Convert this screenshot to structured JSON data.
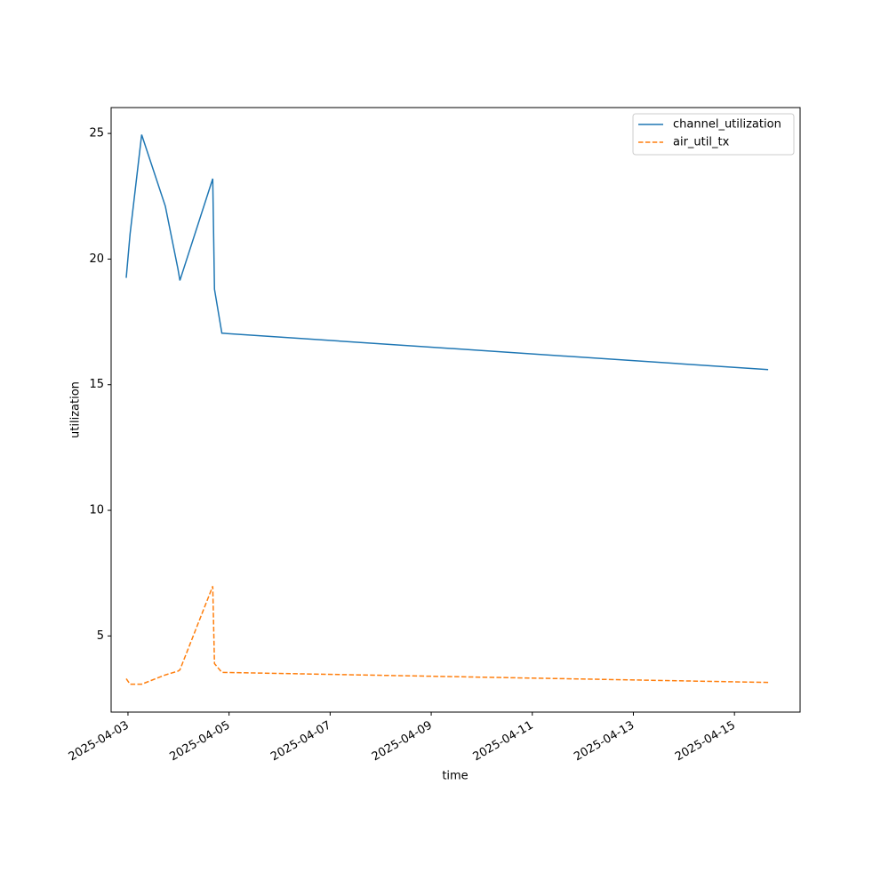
{
  "chart_data": {
    "type": "line",
    "x_label": "time",
    "y_label": "utilization",
    "x": [
      "2025-04-02T23:10",
      "2025-04-03T01:00",
      "2025-04-03T06:30",
      "2025-04-03T17:45",
      "2025-04-03T23:45",
      "2025-04-04T00:40",
      "2025-04-04T16:15",
      "2025-04-04T17:05",
      "2025-04-04T20:35",
      "2025-04-15T16:00"
    ],
    "series": [
      {
        "name": "channel_utilization",
        "color": "#1f77b4",
        "dash": "solid",
        "values": [
          19.25,
          21.0,
          24.95,
          22.1,
          19.6,
          19.15,
          23.2,
          18.8,
          17.05,
          15.6
        ]
      },
      {
        "name": "air_util_tx",
        "color": "#ff7f0e",
        "dash": "dashed",
        "values": [
          3.3,
          3.08,
          3.08,
          3.45,
          3.6,
          3.65,
          6.98,
          3.9,
          3.55,
          3.15
        ]
      }
    ],
    "xlim": [
      "2025-04-02T16:00",
      "2025-04-16T07:10"
    ],
    "xticks": [
      "2025-04-03",
      "2025-04-05",
      "2025-04-07",
      "2025-04-09",
      "2025-04-11",
      "2025-04-13",
      "2025-04-15"
    ],
    "ylim": [
      1.97,
      26.03
    ],
    "yticks": [
      5,
      10,
      15,
      20,
      25
    ],
    "grid": false,
    "legend": "upper right"
  }
}
